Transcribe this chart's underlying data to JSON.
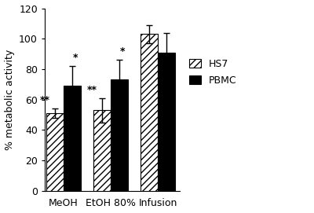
{
  "categories": [
    "MeOH",
    "EtOH 80%",
    "Infusion"
  ],
  "hs7_values": [
    51,
    53,
    103
  ],
  "pbmc_values": [
    69,
    73,
    91
  ],
  "hs7_errors": [
    3,
    8,
    6
  ],
  "pbmc_errors": [
    13,
    13,
    13
  ],
  "hs7_annotations": [
    "**",
    "**",
    ""
  ],
  "pbmc_annotations": [
    "*",
    "*",
    ""
  ],
  "ylabel": "% metabolic activity",
  "ylim": [
    0,
    120
  ],
  "yticks": [
    0,
    20,
    40,
    60,
    80,
    100,
    120
  ],
  "legend_labels": [
    "HS7",
    "PBMC"
  ],
  "bar_width": 0.28,
  "group_positions": [
    0.25,
    1.0,
    1.75
  ],
  "background_color": "#ffffff",
  "hs7_color": "white",
  "pbmc_color": "black",
  "hatch_pattern": "////"
}
